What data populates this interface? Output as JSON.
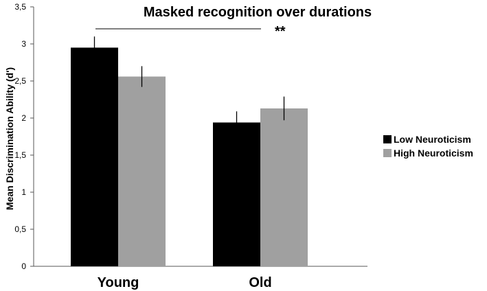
{
  "chart_data": {
    "type": "bar",
    "title": "Masked recognition over durations",
    "xlabel": "",
    "ylabel": "Mean Discrimination Ability (d')",
    "categories": [
      "Young",
      "Old"
    ],
    "series": [
      {
        "name": "Low Neuroticism",
        "values": [
          2.95,
          1.94
        ],
        "errors": [
          0.15,
          0.15
        ],
        "color": "#000000"
      },
      {
        "name": "High Neuroticism",
        "values": [
          2.56,
          2.13
        ],
        "errors": [
          0.14,
          0.16
        ],
        "color": "#a0a0a0"
      }
    ],
    "ylim": [
      0,
      3.5
    ],
    "yticks": [
      "0",
      "0,5",
      "1",
      "1,5",
      "2",
      "2,5",
      "3",
      "3,5"
    ],
    "grid": false,
    "legend_position": "right",
    "annotation": "**"
  }
}
